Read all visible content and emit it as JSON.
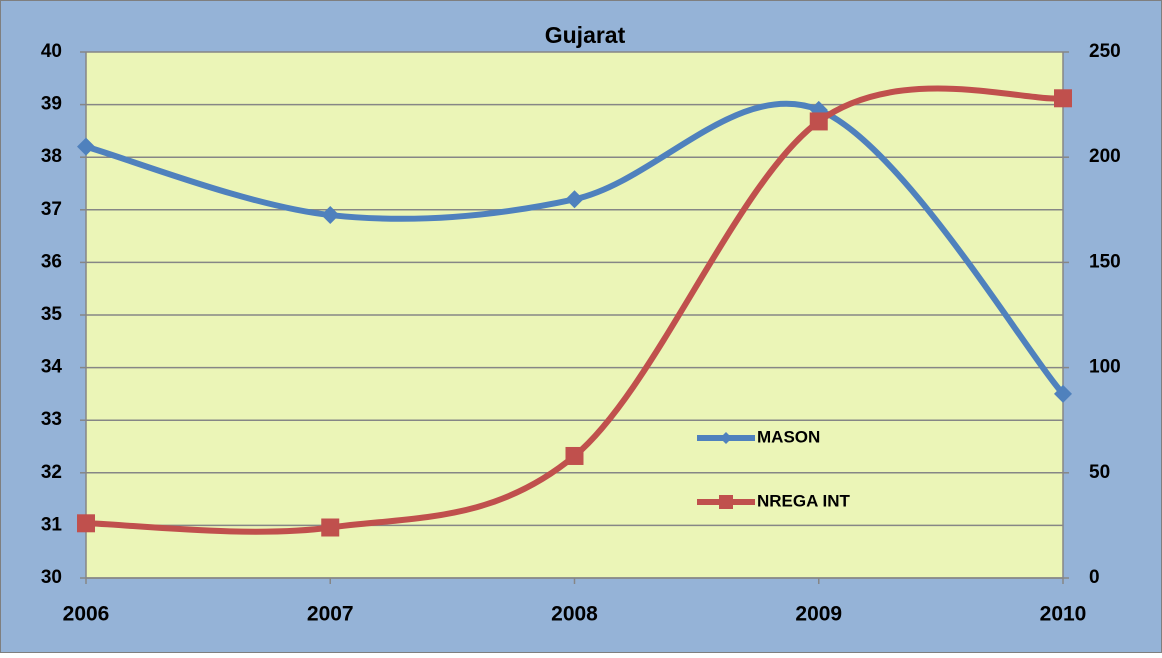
{
  "chart_data": {
    "type": "line",
    "title": "Gujarat",
    "categories": [
      "2006",
      "2007",
      "2008",
      "2009",
      "2010"
    ],
    "series": [
      {
        "name": "MASON",
        "color": "#4f81bd",
        "marker": "diamond",
        "values": [
          38.2,
          36.9,
          37.2,
          38.9,
          33.5
        ]
      },
      {
        "name": "NREGA INT",
        "color": "#c0504d",
        "marker": "square",
        "axis": "y2",
        "values": [
          26,
          24,
          58,
          217,
          228
        ]
      }
    ],
    "ylim": [
      30,
      40
    ],
    "yticks": [
      30,
      31,
      32,
      33,
      34,
      35,
      36,
      37,
      38,
      39,
      40
    ],
    "y2lim": [
      0,
      250
    ],
    "y2ticks": [
      0,
      50,
      100,
      150,
      200,
      250
    ],
    "grid": true,
    "smooth": true
  }
}
